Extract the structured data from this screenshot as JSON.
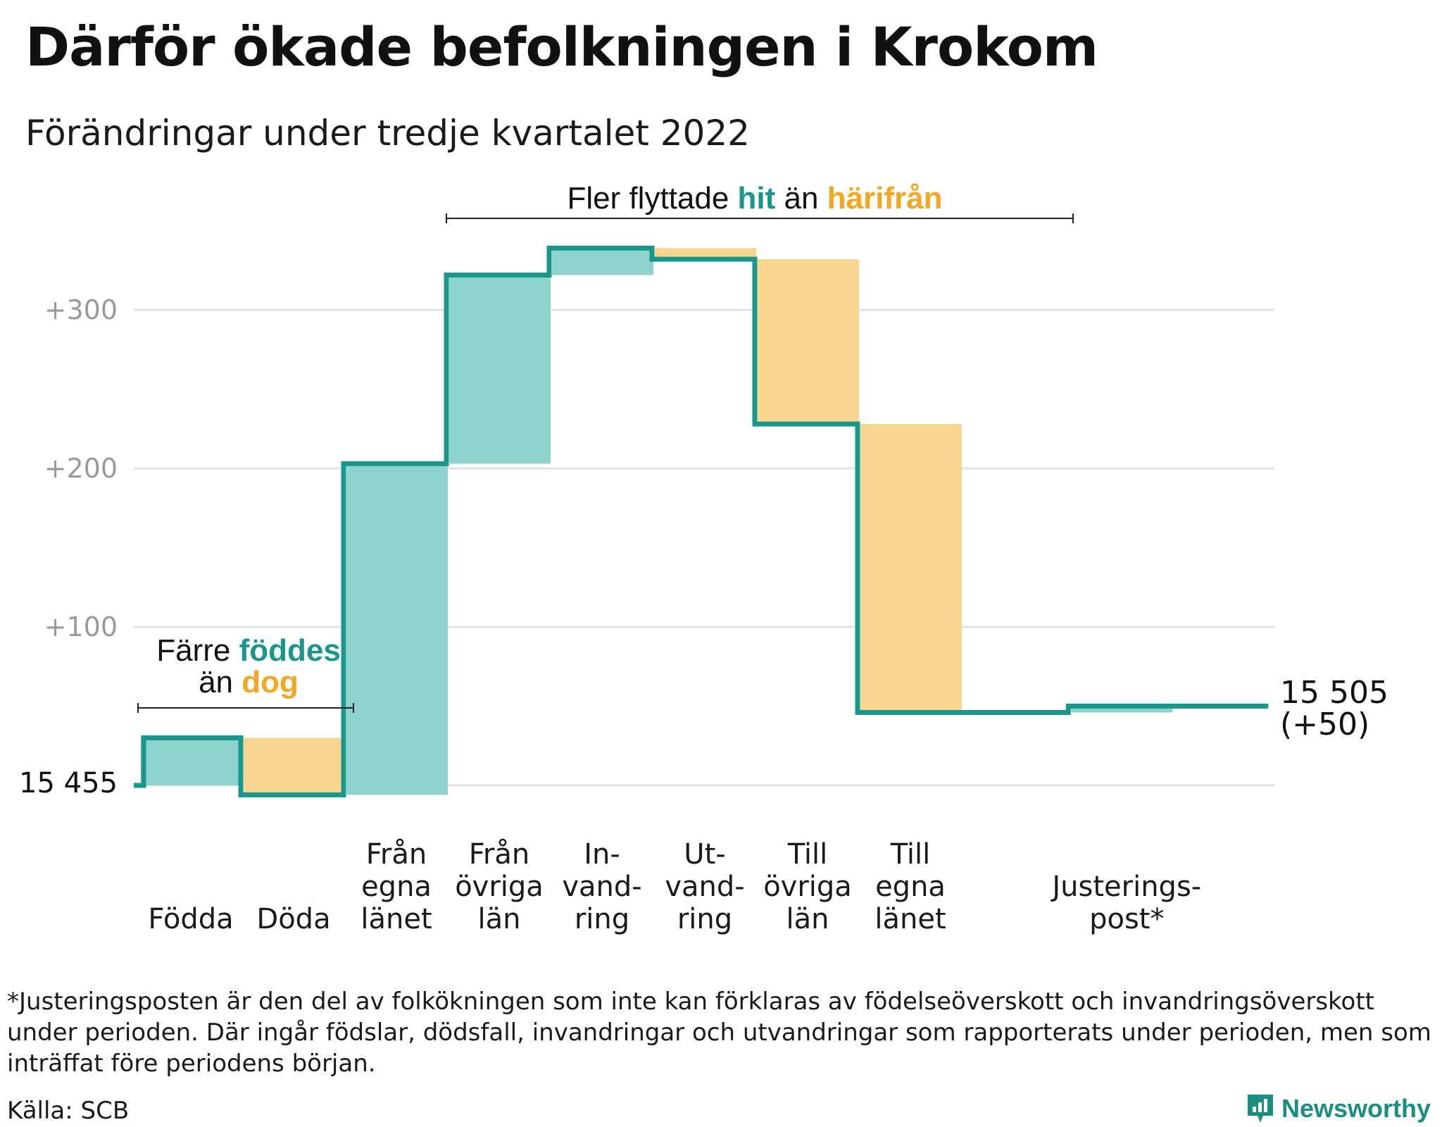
{
  "header": {
    "title": "Därför ökade befolkningen i Krokom",
    "subtitle": "Förändringar under tredje kvartalet 2022"
  },
  "colors": {
    "inflow": "#8dd4cc",
    "outflow": "#fad58f",
    "line": "#1a978a",
    "accent_green": "#1a978a",
    "accent_orange": "#f5a623",
    "grid": "#e3e3e3"
  },
  "chart_data": {
    "type": "waterfall",
    "title": "Därför ökade befolkningen i Krokom",
    "subtitle": "Förändringar under tredje kvartalet 2022",
    "base_population": 15455,
    "base_label": "15 455",
    "ylim": [
      -25,
      345
    ],
    "yticks": [
      {
        "value": 100,
        "label": "+100"
      },
      {
        "value": 200,
        "label": "+200"
      },
      {
        "value": 300,
        "label": "+300"
      }
    ],
    "steps": [
      {
        "key": "fodda",
        "label": [
          "Födda"
        ],
        "delta": 30,
        "start": 0,
        "end": 30,
        "kind": "in"
      },
      {
        "key": "doda",
        "label": [
          "Döda"
        ],
        "delta": -36,
        "start": 30,
        "end": -6,
        "kind": "out"
      },
      {
        "key": "fran_egna",
        "label": [
          "Från",
          "egna",
          "länet"
        ],
        "delta": 209,
        "start": -6,
        "end": 203,
        "kind": "in"
      },
      {
        "key": "fran_ovriga",
        "label": [
          "Från",
          "övriga",
          "län"
        ],
        "delta": 119,
        "start": 203,
        "end": 322,
        "kind": "in"
      },
      {
        "key": "invandring",
        "label": [
          "In-",
          "vand-",
          "ring"
        ],
        "delta": 17,
        "start": 322,
        "end": 339,
        "kind": "in"
      },
      {
        "key": "utvandring",
        "label": [
          "Ut-",
          "vand-",
          "ring"
        ],
        "delta": -7,
        "start": 339,
        "end": 332,
        "kind": "out"
      },
      {
        "key": "till_ovriga",
        "label": [
          "Till",
          "övriga",
          "län"
        ],
        "delta": -104,
        "start": 332,
        "end": 228,
        "kind": "out"
      },
      {
        "key": "till_egna",
        "label": [
          "Till",
          "egna",
          "länet"
        ],
        "delta": -182,
        "start": 228,
        "end": 46,
        "kind": "out"
      },
      {
        "key": "justering",
        "label": [
          "Justerings-",
          "post*"
        ],
        "delta": 4,
        "start": 46,
        "end": 50,
        "kind": "in"
      }
    ],
    "end_value_label": "15 505",
    "end_change_label": "(+50)",
    "annotations": {
      "births": {
        "prefix": "Färre",
        "hit": "föddes",
        "mid": "än",
        "away": "dog"
      },
      "moves": {
        "prefix": "Fler flyttade",
        "hit": "hit",
        "mid": "än",
        "away": "härifrån"
      }
    }
  },
  "footer": {
    "footnote": "*Justeringsposten är den del av folkökningen som inte kan förklaras av födelseöverskott och invandringsöverskott under perioden. Där ingår födslar, dödsfall, invandringar och utvandringar som rapporterats under perioden, men som inträffat före periodens början.",
    "source": "Källa: SCB",
    "brand": "Newsworthy",
    "brand_icon": "newsworthy-logo-icon"
  }
}
